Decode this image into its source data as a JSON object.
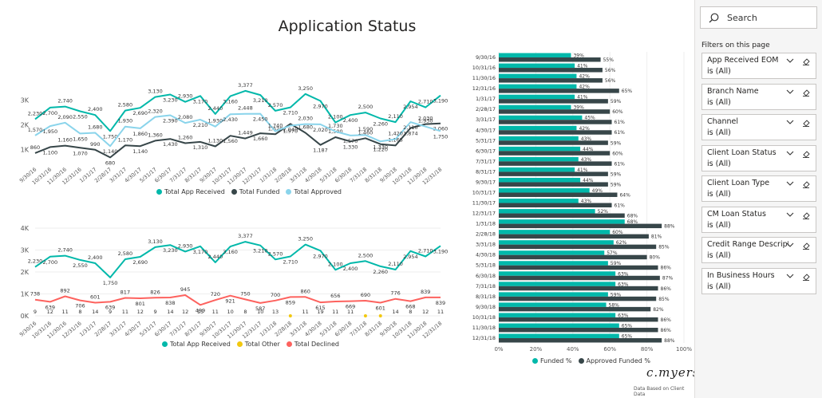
{
  "report": {
    "title": "Application Status",
    "signature": "c.myers",
    "footnote": "Data Based on Client Data"
  },
  "colors": {
    "teal": "#01B8AA",
    "dark": "#374649",
    "lightblue": "#8AD4EB",
    "yellow": "#F2C80F",
    "red": "#FD625E"
  },
  "filter_pane": {
    "search_placeholder": "Search",
    "heading": "Filters on this page",
    "filters": [
      {
        "name": "App Received EOM",
        "value": "is (All)"
      },
      {
        "name": "Branch Name",
        "value": "is (All)"
      },
      {
        "name": "Channel",
        "value": "is (All)"
      },
      {
        "name": "Client Loan Status",
        "value": "is (All)"
      },
      {
        "name": "Client Loan Type",
        "value": "is (All)"
      },
      {
        "name": "CM Loan Status",
        "value": "is (All)"
      },
      {
        "name": "Credit Range Description",
        "value": "is (All)"
      },
      {
        "name": "In Business Hours",
        "value": "is (All)"
      }
    ]
  },
  "chart_data": [
    {
      "type": "line",
      "x": [
        "9/30/16",
        "10/31/16",
        "11/30/16",
        "12/31/16",
        "1/31/17",
        "2/28/17",
        "3/31/17",
        "4/30/17",
        "5/31/17",
        "6/30/17",
        "7/31/17",
        "8/31/17",
        "9/30/17",
        "10/31/17",
        "11/30/17",
        "12/31/17",
        "1/31/18",
        "2/28/18",
        "3/31/18",
        "4/30/18",
        "5/31/18",
        "6/30/18",
        "7/31/18",
        "8/31/18",
        "9/30/18",
        "10/31/18",
        "11/30/18",
        "12/31/18"
      ],
      "y_ticks": [
        "1K",
        "2K",
        "3K"
      ],
      "ylim": [
        500,
        3600
      ],
      "series": [
        {
          "name": "Total App Received",
          "color": "#01B8AA",
          "values": [
            2230,
            2700,
            2740,
            2550,
            2400,
            1750,
            2580,
            2690,
            3130,
            3230,
            2930,
            3170,
            2440,
            3160,
            3377,
            3210,
            2570,
            2710,
            3250,
            2970,
            2100,
            2400,
            2500,
            2260,
            2110,
            2954,
            2710,
            3190
          ]
        },
        {
          "name": "Total Funded",
          "color": "#374649",
          "values": [
            860,
            1100,
            1160,
            1070,
            990,
            680,
            1170,
            1140,
            1360,
            1430,
            1260,
            1310,
            1130,
            1560,
            1449,
            1660,
            1620,
            2040,
            1680,
            1187,
            1500,
            1330,
            1460,
            1220,
            1165,
            1874,
            2030,
            2060
          ]
        },
        {
          "name": "Total Approved",
          "color": "#8AD4EB",
          "values": [
            1570,
            1950,
            2090,
            1650,
            1680,
            1140,
            1930,
            1860,
            2320,
            2390,
            2080,
            2210,
            1930,
            2430,
            2448,
            2450,
            1740,
            1970,
            2030,
            2020,
            1730,
            1570,
            1590,
            1330,
            1420,
            2110,
            1930,
            1750
          ]
        }
      ]
    },
    {
      "type": "line",
      "x": [
        "9/30/16",
        "10/31/16",
        "11/30/16",
        "12/31/16",
        "1/31/17",
        "2/28/17",
        "3/31/17",
        "4/30/17",
        "5/31/17",
        "6/30/17",
        "7/31/17",
        "8/31/17",
        "9/30/17",
        "10/31/17",
        "11/30/17",
        "12/31/17",
        "1/31/18",
        "2/28/18",
        "3/31/18",
        "4/30/18",
        "5/31/18",
        "6/30/18",
        "7/31/18",
        "8/31/18",
        "9/30/18",
        "10/31/18",
        "11/30/18",
        "12/31/18"
      ],
      "y_ticks": [
        "0K",
        "1K",
        "2K",
        "3K",
        "4K"
      ],
      "ylim": [
        0,
        4000
      ],
      "series": [
        {
          "name": "Total App Received",
          "color": "#01B8AA",
          "values": [
            2230,
            2700,
            2740,
            2550,
            2400,
            1750,
            2580,
            2690,
            3130,
            3230,
            2930,
            3170,
            2440,
            3160,
            3377,
            3210,
            2570,
            2710,
            3250,
            2970,
            2100,
            2400,
            2500,
            2260,
            2110,
            2954,
            2710,
            3190
          ]
        },
        {
          "name": "Total Other",
          "color": "#F2C80F",
          "values": [
            9,
            12,
            11,
            8,
            14,
            9,
            11,
            12,
            9,
            14,
            12,
            15,
            11,
            10,
            8,
            10,
            13,
            null,
            11,
            19,
            11,
            11,
            null,
            null,
            14,
            8,
            12,
            11
          ]
        },
        {
          "name": "Total Declined",
          "color": "#FD625E",
          "values": [
            738,
            639,
            892,
            706,
            601,
            639,
            817,
            801,
            826,
            838,
            945,
            499,
            720,
            921,
            750,
            587,
            700,
            859,
            860,
            615,
            656,
            669,
            690,
            601,
            776,
            668,
            839,
            839
          ]
        }
      ]
    },
    {
      "type": "bar",
      "orientation": "horizontal",
      "categories": [
        "9/30/16",
        "10/31/16",
        "11/30/16",
        "12/31/16",
        "1/31/17",
        "2/28/17",
        "3/31/17",
        "4/30/17",
        "5/31/17",
        "6/30/17",
        "7/31/17",
        "8/31/17",
        "9/30/17",
        "10/31/17",
        "11/30/17",
        "12/31/17",
        "1/31/18",
        "2/28/18",
        "3/31/18",
        "4/30/18",
        "5/31/18",
        "6/30/18",
        "7/31/18",
        "8/31/18",
        "9/30/18",
        "10/31/18",
        "11/30/18",
        "12/31/18"
      ],
      "x_ticks": [
        "0%",
        "20%",
        "40%",
        "60%",
        "80%",
        "100%"
      ],
      "xlim": [
        0,
        100
      ],
      "series": [
        {
          "name": "Funded %",
          "color": "#01B8AA",
          "values": [
            39,
            41,
            42,
            42,
            41,
            39,
            45,
            42,
            43,
            44,
            43,
            41,
            44,
            49,
            43,
            52,
            68,
            60,
            62,
            57,
            59,
            63,
            63,
            59,
            58,
            63,
            65,
            65
          ]
        },
        {
          "name": "Approved Funded %",
          "color": "#374649",
          "values": [
            55,
            56,
            56,
            65,
            59,
            60,
            61,
            61,
            59,
            60,
            61,
            59,
            59,
            64,
            61,
            68,
            88,
            81,
            85,
            80,
            86,
            87,
            86,
            85,
            82,
            86,
            86,
            88
          ]
        }
      ]
    }
  ]
}
